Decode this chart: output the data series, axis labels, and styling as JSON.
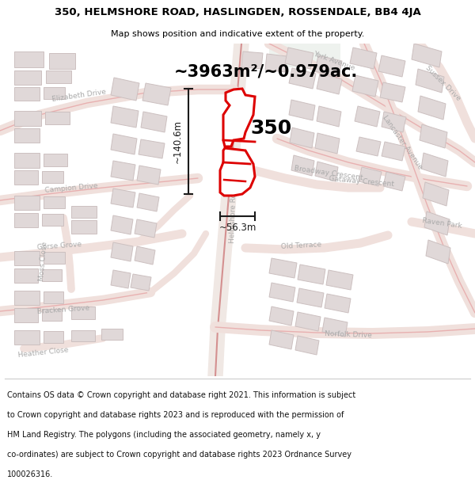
{
  "title_line1": "350, HELMSHORE ROAD, HASLINGDEN, ROSSENDALE, BB4 4JA",
  "title_line2": "Map shows position and indicative extent of the property.",
  "area_text": "~3963m²/~0.979ac.",
  "label_350": "350",
  "dim_vertical": "~140.6m",
  "dim_horizontal": "~56.3m",
  "footer_lines": [
    "Contains OS data © Crown copyright and database right 2021. This information is subject",
    "to Crown copyright and database rights 2023 and is reproduced with the permission of",
    "HM Land Registry. The polygons (including the associated geometry, namely x, y",
    "co-ordinates) are subject to Crown copyright and database rights 2023 Ordnance Survey",
    "100026316."
  ],
  "bg_map_color": "#f9f6f4",
  "bg_white_color": "#ffffff",
  "road_color": "#e8b0b0",
  "road_outline_color": "#d49090",
  "building_fill": "#e0d8d8",
  "building_edge": "#ccc0c0",
  "highlight_color": "#dd0000",
  "dim_line_color": "#1a1a1a",
  "text_color": "#000000",
  "label_color": "#aaaaaa",
  "title_fontsize": 9.5,
  "subtitle_fontsize": 8,
  "area_fontsize": 15,
  "label_fontsize": 6.5,
  "dim_fontsize": 8.5,
  "num_fontsize": 18
}
